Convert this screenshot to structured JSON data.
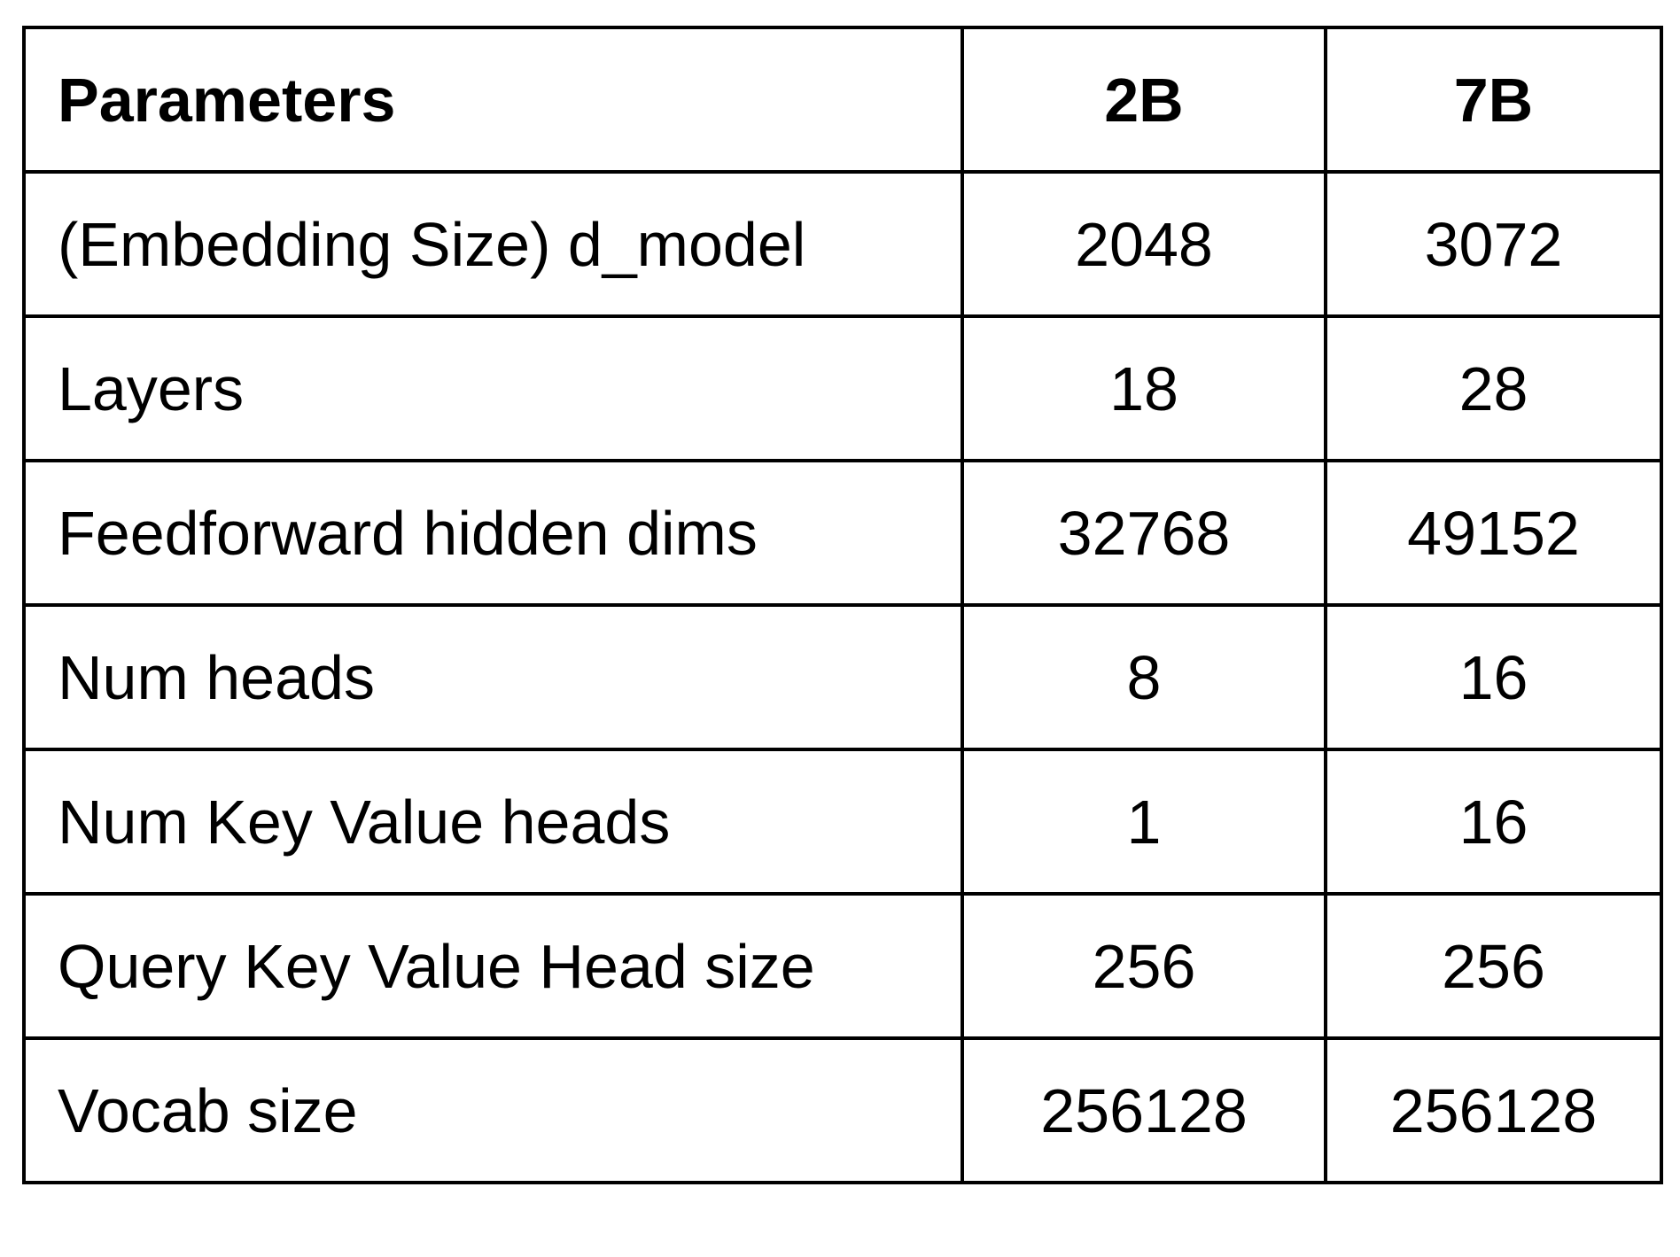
{
  "table": {
    "headers": [
      "Parameters",
      "2B",
      "7B"
    ],
    "rows": [
      [
        "(Embedding Size) d_model",
        "2048",
        "3072"
      ],
      [
        "Layers",
        "18",
        "28"
      ],
      [
        "Feedforward hidden dims",
        "32768",
        "49152"
      ],
      [
        "Num heads",
        "8",
        "16"
      ],
      [
        "Num Key Value heads",
        "1",
        "16"
      ],
      [
        "Query Key Value Head size",
        "256",
        "256"
      ],
      [
        "Vocab size",
        "256128",
        "256128"
      ]
    ]
  }
}
